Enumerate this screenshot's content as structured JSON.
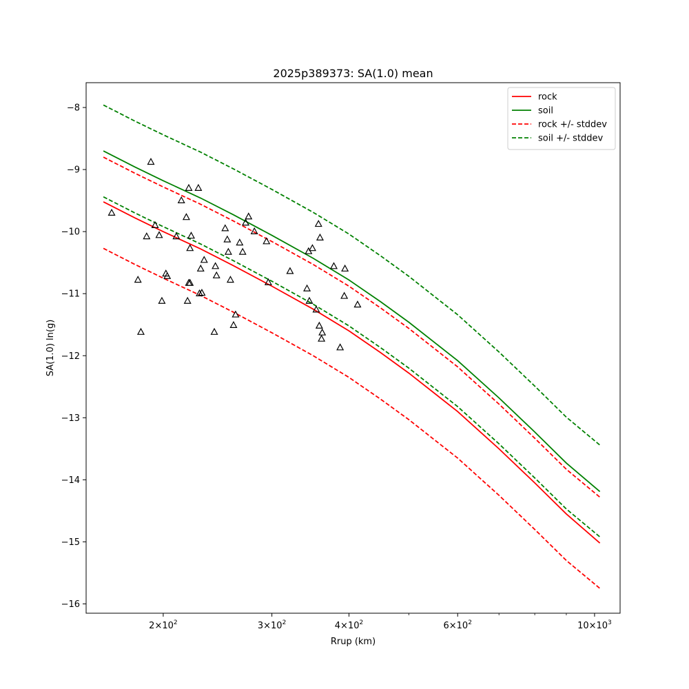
{
  "chart_data": {
    "type": "line",
    "title": "2025p389373: SA(1.0) mean",
    "xlabel": "Rrup (km)",
    "ylabel": "SA(1.0) ln(g)",
    "xscale": "log",
    "xlim": [
      150,
      1100
    ],
    "ylim": [
      -16.15,
      -7.6
    ],
    "x_major_ticks": [
      {
        "value": 200,
        "base": "2",
        "exp": "2"
      },
      {
        "value": 300,
        "base": "3",
        "exp": "2"
      },
      {
        "value": 400,
        "base": "4",
        "exp": "2"
      },
      {
        "value": 600,
        "base": "6",
        "exp": "2"
      },
      {
        "value": 1000,
        "base": "10",
        "exp": "3"
      }
    ],
    "x_minor_ticks": [
      500,
      700,
      800,
      900
    ],
    "y_ticks": [
      {
        "value": -8,
        "label": "−8"
      },
      {
        "value": -9,
        "label": "−9"
      },
      {
        "value": -10,
        "label": "−10"
      },
      {
        "value": -11,
        "label": "−11"
      },
      {
        "value": -12,
        "label": "−12"
      },
      {
        "value": -13,
        "label": "−13"
      },
      {
        "value": -14,
        "label": "−14"
      },
      {
        "value": -15,
        "label": "−15"
      },
      {
        "value": -16,
        "label": "−16"
      }
    ],
    "grid": false,
    "legend_position": "top-right",
    "x": [
      160,
      180,
      200,
      230,
      260,
      300,
      350,
      400,
      450,
      500,
      600,
      700,
      800,
      900,
      1020
    ],
    "series": [
      {
        "name": "rock",
        "color": "#ff0000",
        "style": "solid",
        "values": [
          -9.52,
          -9.78,
          -10.0,
          -10.28,
          -10.55,
          -10.88,
          -11.25,
          -11.6,
          -11.95,
          -12.28,
          -12.9,
          -13.5,
          -14.05,
          -14.55,
          -15.02
        ]
      },
      {
        "name": "soil",
        "color": "#008000",
        "style": "solid",
        "values": [
          -8.7,
          -8.96,
          -9.18,
          -9.46,
          -9.73,
          -10.06,
          -10.43,
          -10.78,
          -11.13,
          -11.46,
          -12.08,
          -12.68,
          -13.23,
          -13.73,
          -14.19
        ]
      },
      {
        "name": "rock +/- stddev",
        "color": "#ff0000",
        "style": "dashed",
        "values": [
          -8.8,
          -9.06,
          -9.28,
          -9.56,
          -9.83,
          -10.16,
          -10.53,
          -10.88,
          -11.23,
          -11.56,
          -12.18,
          -12.78,
          -13.33,
          -13.83,
          -14.28
        ]
      },
      {
        "name": "",
        "color": "#ff0000",
        "style": "dashed",
        "values": [
          -10.27,
          -10.53,
          -10.75,
          -11.03,
          -11.3,
          -11.63,
          -12.0,
          -12.35,
          -12.7,
          -13.03,
          -13.65,
          -14.25,
          -14.8,
          -15.3,
          -15.75
        ]
      },
      {
        "name": "soil +/- stddev",
        "color": "#008000",
        "style": "dashed",
        "values": [
          -7.96,
          -8.22,
          -8.44,
          -8.72,
          -8.99,
          -9.32,
          -9.69,
          -10.04,
          -10.39,
          -10.72,
          -11.34,
          -11.94,
          -12.49,
          -12.99,
          -13.44
        ]
      },
      {
        "name": "",
        "color": "#008000",
        "style": "dashed",
        "values": [
          -9.44,
          -9.7,
          -9.92,
          -10.2,
          -10.47,
          -10.8,
          -11.17,
          -11.52,
          -11.87,
          -12.2,
          -12.82,
          -13.42,
          -13.97,
          -14.47,
          -14.92
        ]
      }
    ],
    "legend": [
      {
        "label": "rock",
        "color": "#ff0000",
        "style": "solid"
      },
      {
        "label": "soil",
        "color": "#008000",
        "style": "solid"
      },
      {
        "label": "rock +/- stddev",
        "color": "#ff0000",
        "style": "dashed"
      },
      {
        "label": "soil +/- stddev",
        "color": "#008000",
        "style": "dashed"
      }
    ],
    "observations": {
      "marker": "triangle",
      "color": "#000000",
      "points": [
        [
          165,
          -9.7
        ],
        [
          182,
          -10.78
        ],
        [
          184,
          -11.62
        ],
        [
          188,
          -10.08
        ],
        [
          191,
          -8.88
        ],
        [
          194,
          -9.9
        ],
        [
          197,
          -10.06
        ],
        [
          199,
          -11.12
        ],
        [
          202,
          -10.68
        ],
        [
          203,
          -10.72
        ],
        [
          210,
          -10.08
        ],
        [
          214,
          -9.5
        ],
        [
          218,
          -9.77
        ],
        [
          219,
          -11.12
        ],
        [
          220,
          -9.3
        ],
        [
          220,
          -10.83
        ],
        [
          221,
          -10.83
        ],
        [
          221,
          -10.27
        ],
        [
          222,
          -10.07
        ],
        [
          228,
          -9.3
        ],
        [
          229,
          -11.0
        ],
        [
          230,
          -10.6
        ],
        [
          231,
          -10.99
        ],
        [
          233,
          -10.46
        ],
        [
          242,
          -11.62
        ],
        [
          243,
          -10.56
        ],
        [
          244,
          -10.71
        ],
        [
          252,
          -9.95
        ],
        [
          254,
          -10.13
        ],
        [
          255,
          -10.33
        ],
        [
          257,
          -10.78
        ],
        [
          260,
          -11.51
        ],
        [
          262,
          -11.34
        ],
        [
          266,
          -10.18
        ],
        [
          269,
          -10.33
        ],
        [
          272,
          -9.86
        ],
        [
          275,
          -9.76
        ],
        [
          281,
          -10.0
        ],
        [
          294,
          -10.16
        ],
        [
          296,
          -10.82
        ],
        [
          321,
          -10.64
        ],
        [
          342,
          -10.92
        ],
        [
          344,
          -10.32
        ],
        [
          345,
          -11.12
        ],
        [
          349,
          -10.27
        ],
        [
          354,
          -11.26
        ],
        [
          357,
          -9.88
        ],
        [
          358,
          -11.52
        ],
        [
          359,
          -10.1
        ],
        [
          361,
          -11.73
        ],
        [
          362,
          -11.63
        ],
        [
          378,
          -10.56
        ],
        [
          387,
          -11.87
        ],
        [
          393,
          -11.04
        ],
        [
          394,
          -10.6
        ],
        [
          413,
          -11.18
        ]
      ]
    }
  }
}
